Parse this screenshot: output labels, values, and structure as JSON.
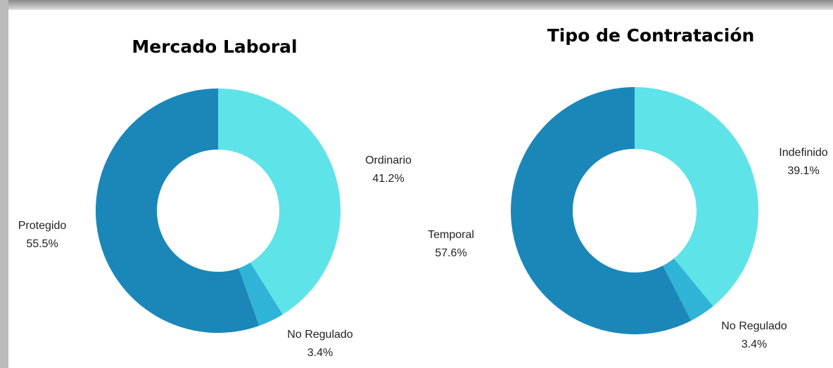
{
  "chart_data": [
    {
      "type": "pie",
      "title": "Mercado Laboral",
      "categories": [
        "Ordinario",
        "No Regulado",
        "Protegido"
      ],
      "values": [
        41.2,
        3.4,
        55.5
      ],
      "value_labels": [
        "41.2%",
        "3.4%",
        "55.5%"
      ],
      "colors": [
        "#5ee3e8",
        "#2fb3d6",
        "#1a87b8"
      ]
    },
    {
      "type": "pie",
      "title": "Tipo de Contratación",
      "categories": [
        "Indefinido",
        "No Regulado",
        "Temporal"
      ],
      "values": [
        39.1,
        3.4,
        57.6
      ],
      "value_labels": [
        "39.1%",
        "3.4%",
        "57.6%"
      ],
      "colors": [
        "#5ee3e8",
        "#2fb3d6",
        "#1a87b8"
      ]
    }
  ]
}
